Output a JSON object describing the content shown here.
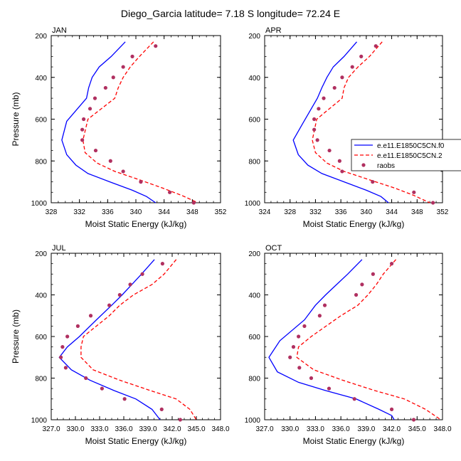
{
  "title": "Diego_Garcia  latitude= 7.18 S longitude= 72.24 E",
  "legend": {
    "placement": "right of APR panel",
    "entries": [
      {
        "label": "e.e11.E1850C5CN.f0",
        "style": "solid",
        "color": "#0000ff"
      },
      {
        "label": "e.e11.E1850C5CN.2",
        "style": "dashed",
        "color": "#ff0000"
      },
      {
        "label": "raobs",
        "style": "marker",
        "color": "#b03060"
      }
    ]
  },
  "chart_data": [
    {
      "type": "line",
      "panel": "JAN",
      "title": "JAN",
      "xlabel": "Moist Static Energy (kJ/kg)",
      "ylabel": "Pressure (mb)",
      "xlim": [
        328,
        352
      ],
      "xticks": [
        "328",
        "332",
        "336",
        "340",
        "344",
        "348",
        "352"
      ],
      "ylim": [
        200,
        1000
      ],
      "yticks": [
        "200",
        "400",
        "600",
        "800",
        "1000"
      ],
      "y_reversed": true,
      "grid": false,
      "series": [
        {
          "name": "e.e11.E1850C5CN.f0",
          "color": "#0000ff",
          "style": "solid",
          "x": [
            338.5,
            336.5,
            334.8,
            333.8,
            333.3,
            333.0,
            330.2,
            329.5,
            330.2,
            331.5,
            333.2,
            336.3,
            339.5,
            341.5,
            342.8
          ],
          "y": [
            230,
            300,
            350,
            400,
            450,
            500,
            610,
            700,
            770,
            820,
            860,
            900,
            940,
            970,
            1000
          ]
        },
        {
          "name": "e.e11.E1850C5CN.2",
          "color": "#ff0000",
          "style": "dashed",
          "x": [
            342.5,
            340.5,
            339.2,
            338.2,
            337.5,
            337.0,
            333.2,
            332.5,
            332.8,
            334.5,
            337.0,
            340.5,
            343.8,
            346.5,
            348.8
          ],
          "y": [
            230,
            300,
            350,
            400,
            450,
            500,
            600,
            700,
            760,
            810,
            850,
            890,
            930,
            965,
            1000
          ]
        },
        {
          "name": "raobs",
          "color": "#b03060",
          "style": "marker",
          "x": [
            342.8,
            339.5,
            338.2,
            336.8,
            335.7,
            334.2,
            333.5,
            332.6,
            332.4,
            332.4,
            334.3,
            336.4,
            338.2,
            340.7,
            344.8,
            348.2
          ],
          "y": [
            250,
            300,
            350,
            400,
            450,
            500,
            550,
            600,
            650,
            700,
            750,
            800,
            850,
            900,
            950,
            1000
          ]
        }
      ]
    },
    {
      "type": "line",
      "panel": "APR",
      "title": "APR",
      "xlabel": "Moist Static Energy (kJ/kg)",
      "ylabel": "",
      "xlim": [
        324,
        352
      ],
      "xticks": [
        "324",
        "328",
        "332",
        "336",
        "340",
        "344",
        "348",
        "352"
      ],
      "ylim": [
        200,
        1000
      ],
      "yticks": [
        "200",
        "400",
        "600",
        "800",
        "1000"
      ],
      "y_reversed": true,
      "grid": false,
      "series": [
        {
          "name": "e.e11.E1850C5CN.f0",
          "color": "#0000ff",
          "style": "solid",
          "x": [
            338.5,
            336.5,
            334.8,
            333.8,
            333.0,
            332.3,
            330.0,
            328.5,
            329.3,
            330.8,
            333.0,
            336.5,
            340.0,
            342.3,
            343.5
          ],
          "y": [
            230,
            300,
            350,
            400,
            450,
            500,
            620,
            700,
            770,
            820,
            860,
            900,
            940,
            970,
            1000
          ]
        },
        {
          "name": "e.e11.E1850C5CN.2",
          "color": "#ff0000",
          "style": "dashed",
          "x": [
            342.5,
            340.5,
            338.7,
            337.2,
            336.5,
            336.2,
            332.2,
            331.5,
            332.0,
            333.8,
            336.5,
            340.5,
            344.5,
            347.5,
            350.0
          ],
          "y": [
            230,
            300,
            350,
            400,
            450,
            500,
            600,
            700,
            760,
            810,
            850,
            890,
            930,
            965,
            1000
          ]
        },
        {
          "name": "raobs",
          "color": "#b03060",
          "style": "marker",
          "x": [
            341.5,
            339.2,
            337.8,
            336.2,
            335.0,
            333.3,
            332.5,
            331.8,
            331.8,
            332.3,
            334.2,
            335.8,
            336.2,
            341.0,
            347.5,
            350.5
          ],
          "y": [
            250,
            300,
            350,
            400,
            450,
            500,
            550,
            600,
            650,
            700,
            750,
            800,
            850,
            900,
            950,
            1000
          ]
        }
      ]
    },
    {
      "type": "line",
      "panel": "JUL",
      "title": "JUL",
      "xlabel": "Moist Static Energy (kJ/kg)",
      "ylabel": "Pressure (mb)",
      "xlim": [
        327,
        348
      ],
      "xticks": [
        "327.0",
        "330.0",
        "333.0",
        "336.0",
        "339.0",
        "342.0",
        "345.0",
        "348.0"
      ],
      "ylim": [
        200,
        1000
      ],
      "yticks": [
        "200",
        "400",
        "600",
        "800",
        "1000"
      ],
      "y_reversed": true,
      "grid": false,
      "series": [
        {
          "name": "e.e11.E1850C5CN.f0",
          "color": "#0000ff",
          "style": "solid",
          "x": [
            339.8,
            338.2,
            337.0,
            335.8,
            334.5,
            332.6,
            330.5,
            329.0,
            328.0,
            329.5,
            331.8,
            334.8,
            337.5,
            339.5,
            340.5
          ],
          "y": [
            230,
            300,
            350,
            400,
            450,
            520,
            600,
            650,
            700,
            760,
            810,
            860,
            900,
            950,
            1000
          ]
        },
        {
          "name": "e.e11.E1850C5CN.2",
          "color": "#ff0000",
          "style": "dashed",
          "x": [
            342.5,
            341.0,
            339.5,
            337.2,
            335.5,
            334.2,
            331.0,
            330.7,
            330.7,
            332.2,
            335.5,
            339.3,
            342.5,
            344.2,
            345.0
          ],
          "y": [
            230,
            300,
            350,
            400,
            450,
            500,
            600,
            650,
            700,
            760,
            810,
            860,
            900,
            950,
            1000
          ]
        },
        {
          "name": "raobs",
          "color": "#b03060",
          "style": "marker",
          "x": [
            340.8,
            338.3,
            336.8,
            335.5,
            334.2,
            331.9,
            330.3,
            329.0,
            328.4,
            328.2,
            328.8,
            331.3,
            333.3,
            336.1,
            340.7,
            343.0
          ],
          "y": [
            250,
            300,
            350,
            400,
            450,
            500,
            550,
            600,
            650,
            700,
            750,
            800,
            850,
            900,
            950,
            1000
          ]
        }
      ]
    },
    {
      "type": "line",
      "panel": "OCT",
      "title": "OCT",
      "xlabel": "Moist Static Energy (kJ/kg)",
      "ylabel": "",
      "xlim": [
        327,
        348
      ],
      "xticks": [
        "327.0",
        "330.0",
        "333.0",
        "336.0",
        "339.0",
        "342.0",
        "345.0",
        "348.0"
      ],
      "ylim": [
        200,
        1000
      ],
      "yticks": [
        "200",
        "400",
        "600",
        "800",
        "1000"
      ],
      "y_reversed": true,
      "grid": false,
      "series": [
        {
          "name": "e.e11.E1850C5CN.f0",
          "color": "#0000ff",
          "style": "solid",
          "x": [
            338.5,
            336.8,
            335.5,
            334.2,
            333.0,
            331.7,
            328.8,
            327.5,
            328.5,
            331.0,
            334.2,
            337.8,
            340.5,
            342.0,
            342.3
          ],
          "y": [
            230,
            300,
            350,
            400,
            450,
            520,
            620,
            700,
            770,
            820,
            860,
            900,
            950,
            980,
            1000
          ]
        },
        {
          "name": "e.e11.E1850C5CN.2",
          "color": "#ff0000",
          "style": "dashed",
          "x": [
            342.5,
            341.0,
            340.2,
            339.2,
            338.0,
            336.0,
            332.5,
            331.0,
            330.8,
            332.8,
            336.2,
            340.0,
            343.5,
            346.0,
            347.8
          ],
          "y": [
            230,
            300,
            350,
            400,
            450,
            500,
            600,
            650,
            700,
            760,
            810,
            860,
            900,
            950,
            1000
          ]
        },
        {
          "name": "raobs",
          "color": "#b03060",
          "style": "marker",
          "x": [
            342.0,
            339.8,
            338.5,
            337.8,
            334.1,
            333.5,
            331.7,
            331.0,
            330.4,
            330.0,
            331.1,
            332.5,
            334.6,
            337.6,
            342.0,
            344.6
          ],
          "y": [
            250,
            300,
            350,
            400,
            450,
            500,
            550,
            600,
            650,
            700,
            750,
            800,
            850,
            900,
            950,
            1000
          ]
        }
      ]
    }
  ]
}
